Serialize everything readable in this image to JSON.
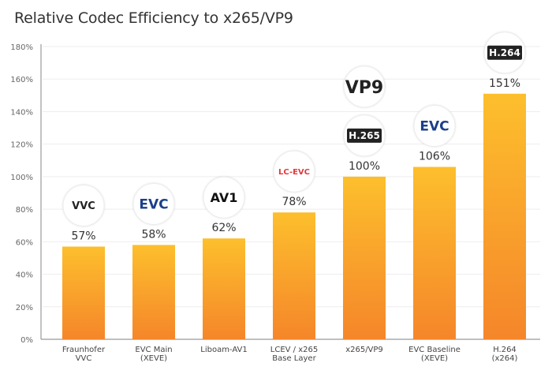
{
  "chart_data": {
    "type": "bar",
    "title": "Relative Codec Efficiency to x265/VP9",
    "xlabel": "",
    "ylabel": "",
    "ylim": [
      0,
      180
    ],
    "yticks": [
      "0%",
      "20%",
      "40%",
      "60%",
      "80%",
      "100%",
      "120%",
      "140%",
      "160%",
      "180%"
    ],
    "grid": true,
    "categories": [
      [
        "Fraunhofer",
        "VVC"
      ],
      [
        "EVC Main",
        "(XEVE)"
      ],
      [
        "Liboam-AV1"
      ],
      [
        "LCEV / x265",
        "Base Layer"
      ],
      [
        "x265/VP9"
      ],
      [
        "EVC Baseline",
        "(XEVE)"
      ],
      [
        "H.264",
        "(x264)"
      ]
    ],
    "values": [
      57,
      58,
      62,
      78,
      100,
      106,
      151
    ],
    "data_labels": [
      "57%",
      "58%",
      "62%",
      "78%",
      "100%",
      "106%",
      "151%"
    ],
    "logos": [
      [
        "VVC"
      ],
      [
        "EVC"
      ],
      [
        "AV1"
      ],
      [
        "LC-EVC"
      ],
      [
        "VP9",
        "H.265"
      ],
      [
        "EVC"
      ],
      [
        "H.264"
      ]
    ],
    "bar_gradient": [
      "#fdbf2d",
      "#f5862a"
    ]
  }
}
